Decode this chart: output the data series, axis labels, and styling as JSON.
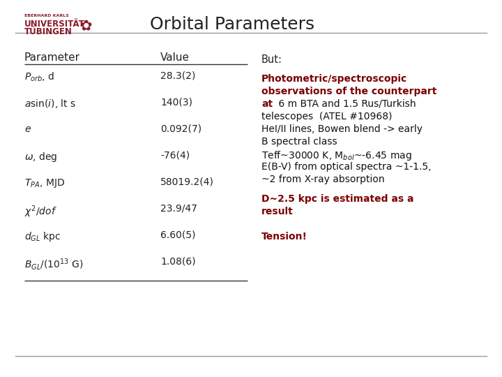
{
  "title": "Orbital Parameters",
  "bg_color": "#ffffff",
  "title_color": "#222222",
  "title_fontsize": 18,
  "header_line_color": "#999999",
  "footer_line_color": "#999999",
  "table_headers": [
    "Parameter",
    "Value"
  ],
  "table_params": [
    [
      "$P_{orb}$, d",
      "28.3(2)"
    ],
    [
      "$a\\sin(i)$, lt s",
      "140(3)"
    ],
    [
      "$e$",
      "0.092(7)"
    ],
    [
      "$\\omega$, deg",
      "-76(4)"
    ],
    [
      "$T_{PA}$, MJD",
      "58019.2(4)"
    ],
    [
      "$\\chi^2/dof$",
      "23.9/47"
    ],
    [
      "$d_{GL}$ kpc",
      "6.60(5)"
    ],
    [
      "$B_{GL}/(10^{13}$ G)",
      "1.08(6)"
    ]
  ],
  "table_line_color": "#333333",
  "but_text": "But:",
  "but_color": "#222222",
  "bold_red_color": "#7B0000",
  "normal_color": "#111111",
  "logo_color": "#8B1A2A",
  "bold_red_lines": [
    "Photometric/spectroscopic",
    "observations of the counterpart",
    "at"
  ],
  "normal_lines": [
    " 6 m BTA and 1.5 Rus/Turkish",
    "telescopes  (ATEL #10968)",
    "HeI/II lines, Bowen blend -> early",
    "B spectral class",
    "Teff~30000 K, M$_{bol}$~-6.45 mag",
    "E(B-V) from optical spectra ~1-1.5,",
    "~2 from X-ray absorption"
  ],
  "distance_line1": "D~2.5 kpc is estimated as a",
  "distance_line2": "result",
  "tension": "Tension!"
}
